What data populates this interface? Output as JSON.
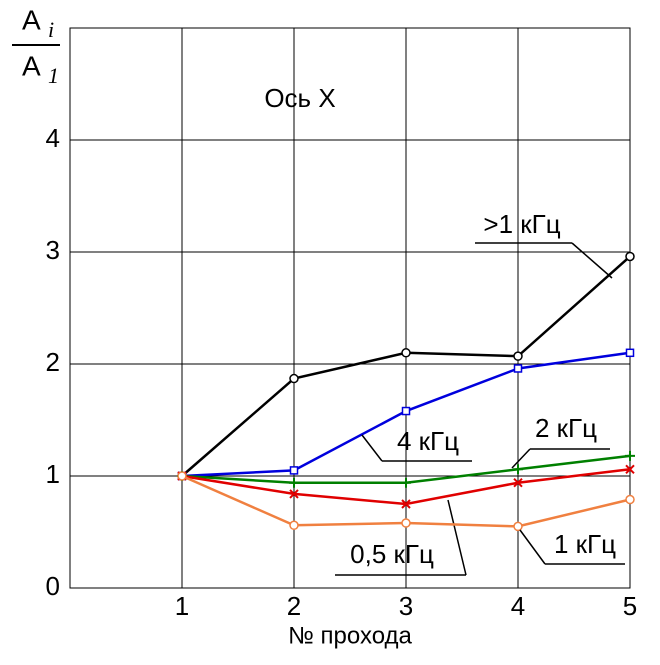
{
  "chart_data": {
    "type": "line",
    "annotation": "Ось X",
    "y_label": {
      "top": "A",
      "top_sub": "i",
      "bottom": "A",
      "bottom_sub": "1"
    },
    "x_label": "№ прохода",
    "x": [
      1,
      2,
      3,
      4,
      5
    ],
    "xlim": [
      0,
      5
    ],
    "xticks": [
      1,
      2,
      3,
      4,
      5
    ],
    "ylim": [
      0,
      5
    ],
    "yticks": [
      0,
      1,
      2,
      3,
      4
    ],
    "grid": true,
    "series": [
      {
        "name": ">1 кГц",
        "color": "#000000",
        "marker": "circle",
        "values": [
          1,
          1.87,
          2.1,
          2.07,
          2.96
        ]
      },
      {
        "name": "4 кГц",
        "color": "#0000dd",
        "marker": "square",
        "values": [
          1,
          1.05,
          1.58,
          1.96,
          2.1
        ]
      },
      {
        "name": "2 кГц",
        "color": "#008000",
        "marker": "plus",
        "values": [
          1,
          0.94,
          0.94,
          1.06,
          1.18
        ]
      },
      {
        "name": "0,5 кГц",
        "color": "#e00000",
        "marker": "cross",
        "values": [
          1,
          0.84,
          0.75,
          0.94,
          1.06
        ]
      },
      {
        "name": "1 кГц",
        "color": "#f08040",
        "marker": "circle",
        "values": [
          1,
          0.56,
          0.58,
          0.55,
          0.79
        ]
      }
    ]
  }
}
